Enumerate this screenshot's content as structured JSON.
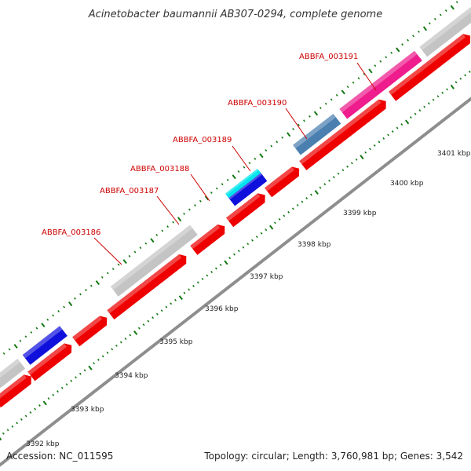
{
  "title": "Acinetobacter baumannii AB307-0294, complete genome",
  "footer": {
    "accession": "Accession: NC_011595",
    "summary": "Topology: circular; Length: 3,760,981 bp; Genes: 3,542"
  },
  "gene_labels": [
    "ABBFA_003186",
    "ABBFA_003187",
    "ABBFA_003188",
    "ABBFA_003189",
    "ABBFA_003190",
    "ABBFA_003191"
  ],
  "kbp_labels": [
    "3392 kbp",
    "3393 kbp",
    "3394 kbp",
    "3395 kbp",
    "3396 kbp",
    "3397 kbp",
    "3398 kbp",
    "3399 kbp",
    "3400 kbp",
    "3401 kbp"
  ],
  "colors": {
    "gene_label": "#cc0000",
    "cds": "#ee0000",
    "tick": "#117711",
    "backbone": "#999999",
    "grey_feature": "#c4c4c4",
    "blue_feature": "#1010dd",
    "cyan_feature": "#00e5ee",
    "steel_feature": "#4a7fb0",
    "pink_feature": "#ee1c8c",
    "slate_feature": "#4a4a8a"
  }
}
